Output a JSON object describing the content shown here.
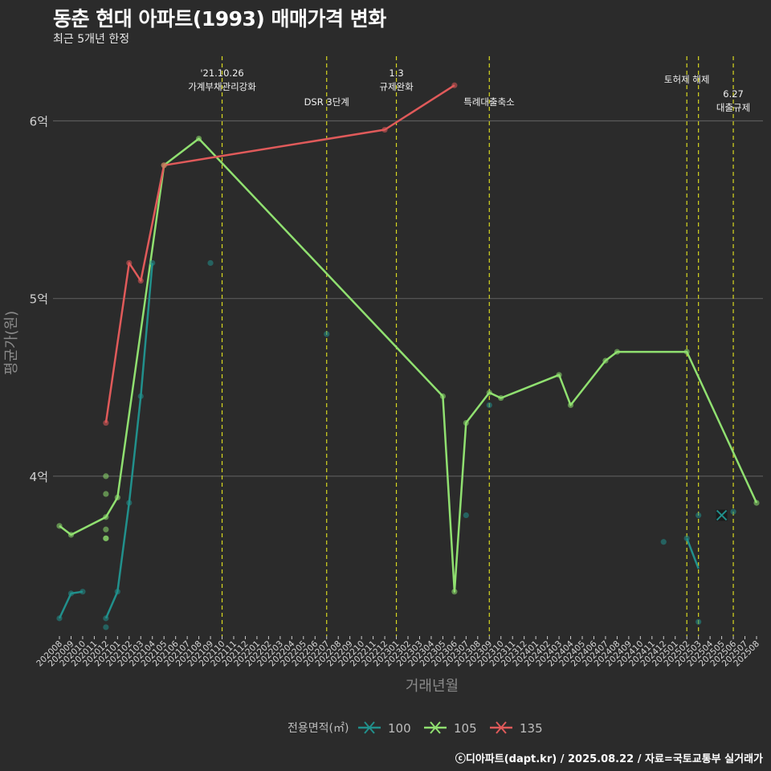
{
  "title": "동춘 현대 아파트(1993) 매매가격 변화",
  "subtitle": "최근 5개년 한정",
  "caption": "ⓒ디아파트(dapt.kr) / 2025.08.22 / 자료=국토교통부 실거래가",
  "chart_data": {
    "type": "line",
    "title": "동춘 현대 아파트(1993) 매매가격 변화",
    "xlabel": "거래년월",
    "ylabel": "평균가(원)",
    "ylim": [
      3.1,
      6.4
    ],
    "yticks": [
      {
        "v": 4,
        "label": "4억"
      },
      {
        "v": 5,
        "label": "5억"
      },
      {
        "v": 6,
        "label": "6억"
      }
    ],
    "x_categories": [
      "202008",
      "202009",
      "202010",
      "202011",
      "202012",
      "202101",
      "202102",
      "202103",
      "202104",
      "202105",
      "202106",
      "202107",
      "202108",
      "202109",
      "202110",
      "202111",
      "202112",
      "202201",
      "202202",
      "202203",
      "202204",
      "202205",
      "202206",
      "202207",
      "202208",
      "202209",
      "202210",
      "202211",
      "202212",
      "202301",
      "202302",
      "202303",
      "202304",
      "202305",
      "202306",
      "202307",
      "202308",
      "202309",
      "202310",
      "202311",
      "202312",
      "202401",
      "202402",
      "202403",
      "202404",
      "202405",
      "202406",
      "202407",
      "202408",
      "202409",
      "202410",
      "202411",
      "202412",
      "202501",
      "202502",
      "202503",
      "202504",
      "202505",
      "202506",
      "202507",
      "202508"
    ],
    "legend_title": "전용면적(㎡)",
    "series": [
      {
        "name": "100",
        "color": "#21908c",
        "segments": [
          [
            [
              "202008",
              3.2
            ],
            [
              "202009",
              3.34
            ],
            [
              "202010",
              3.35
            ]
          ],
          [
            [
              "202012",
              3.2
            ],
            [
              "202101",
              3.35
            ],
            [
              "202102",
              3.85
            ],
            [
              "202103",
              4.45
            ],
            [
              "202104",
              5.2
            ]
          ],
          [
            [
              "202502",
              3.65
            ],
            [
              "202503",
              3.48
            ]
          ]
        ],
        "points": [
          [
            "202008",
            3.2
          ],
          [
            "202009",
            3.34
          ],
          [
            "202010",
            3.35
          ],
          [
            "202012",
            3.15
          ],
          [
            "202012",
            3.2
          ],
          [
            "202101",
            3.35
          ],
          [
            "202102",
            3.85
          ],
          [
            "202103",
            4.45
          ],
          [
            "202104",
            5.2
          ],
          [
            "202109",
            5.2
          ],
          [
            "202207",
            4.8
          ],
          [
            "202307",
            3.78
          ],
          [
            "202309",
            4.4
          ],
          [
            "202412",
            3.63
          ],
          [
            "202502",
            3.65
          ],
          [
            "202503",
            3.18
          ],
          [
            "202503",
            3.78
          ],
          [
            "202506",
            3.8
          ]
        ]
      },
      {
        "name": "105",
        "color": "#90e070",
        "segments": [
          [
            [
              "202008",
              3.72
            ],
            [
              "202009",
              3.67
            ],
            [
              "202012",
              3.77
            ],
            [
              "202101",
              3.88
            ],
            [
              "202105",
              5.75
            ],
            [
              "202108",
              5.9
            ],
            [
              "202305",
              4.45
            ],
            [
              "202306",
              3.35
            ],
            [
              "202307",
              4.3
            ],
            [
              "202309",
              4.47
            ],
            [
              "202310",
              4.44
            ],
            [
              "202403",
              4.57
            ],
            [
              "202404",
              4.4
            ],
            [
              "202407",
              4.65
            ],
            [
              "202408",
              4.7
            ],
            [
              "202502",
              4.7
            ],
            [
              "202508",
              3.85
            ]
          ]
        ],
        "points": [
          [
            "202008",
            3.72
          ],
          [
            "202009",
            3.67
          ],
          [
            "202012",
            4.0
          ],
          [
            "202012",
            3.9
          ],
          [
            "202012",
            3.7
          ],
          [
            "202012",
            3.65
          ],
          [
            "202012",
            3.65
          ],
          [
            "202012",
            3.77
          ],
          [
            "202101",
            3.88
          ],
          [
            "202105",
            5.75
          ],
          [
            "202108",
            5.9
          ],
          [
            "202305",
            4.45
          ],
          [
            "202306",
            3.35
          ],
          [
            "202307",
            4.3
          ],
          [
            "202309",
            4.47
          ],
          [
            "202310",
            4.44
          ],
          [
            "202403",
            4.57
          ],
          [
            "202404",
            4.4
          ],
          [
            "202407",
            4.65
          ],
          [
            "202408",
            4.7
          ],
          [
            "202502",
            4.7
          ],
          [
            "202508",
            3.85
          ]
        ]
      },
      {
        "name": "135",
        "color": "#e05a5a",
        "segments": [
          [
            [
              "202012",
              4.3
            ],
            [
              "202102",
              5.2
            ],
            [
              "202103",
              5.1
            ],
            [
              "202105",
              5.75
            ],
            [
              "202212",
              5.95
            ],
            [
              "202306",
              6.2
            ]
          ]
        ],
        "points": [
          [
            "202012",
            4.3
          ],
          [
            "202102",
            5.2
          ],
          [
            "202103",
            5.1
          ],
          [
            "202105",
            5.75
          ],
          [
            "202212",
            5.95
          ],
          [
            "202306",
            6.2
          ]
        ]
      }
    ],
    "crosses": [
      {
        "x": "202505",
        "y": 3.78,
        "series": "100"
      }
    ],
    "events": [
      {
        "x": "202110",
        "lines": [
          "'21.10.26",
          "가계부채관리강화"
        ],
        "row": "top"
      },
      {
        "x": "202207",
        "lines": [
          "DSR 3단계"
        ],
        "row": "mid"
      },
      {
        "x": "202301",
        "lines": [
          "1.3",
          "규제완화"
        ],
        "row": "top"
      },
      {
        "x": "202309",
        "lines": [
          "특례대출축소"
        ],
        "row": "mid"
      },
      {
        "x": "202502",
        "lines": [
          "토허제 해제"
        ],
        "row": "top2"
      },
      {
        "x": "202503",
        "lines": [],
        "row": "none"
      },
      {
        "x": "202506",
        "lines": [
          "6.27",
          "대출규제"
        ],
        "row": "right"
      }
    ]
  }
}
